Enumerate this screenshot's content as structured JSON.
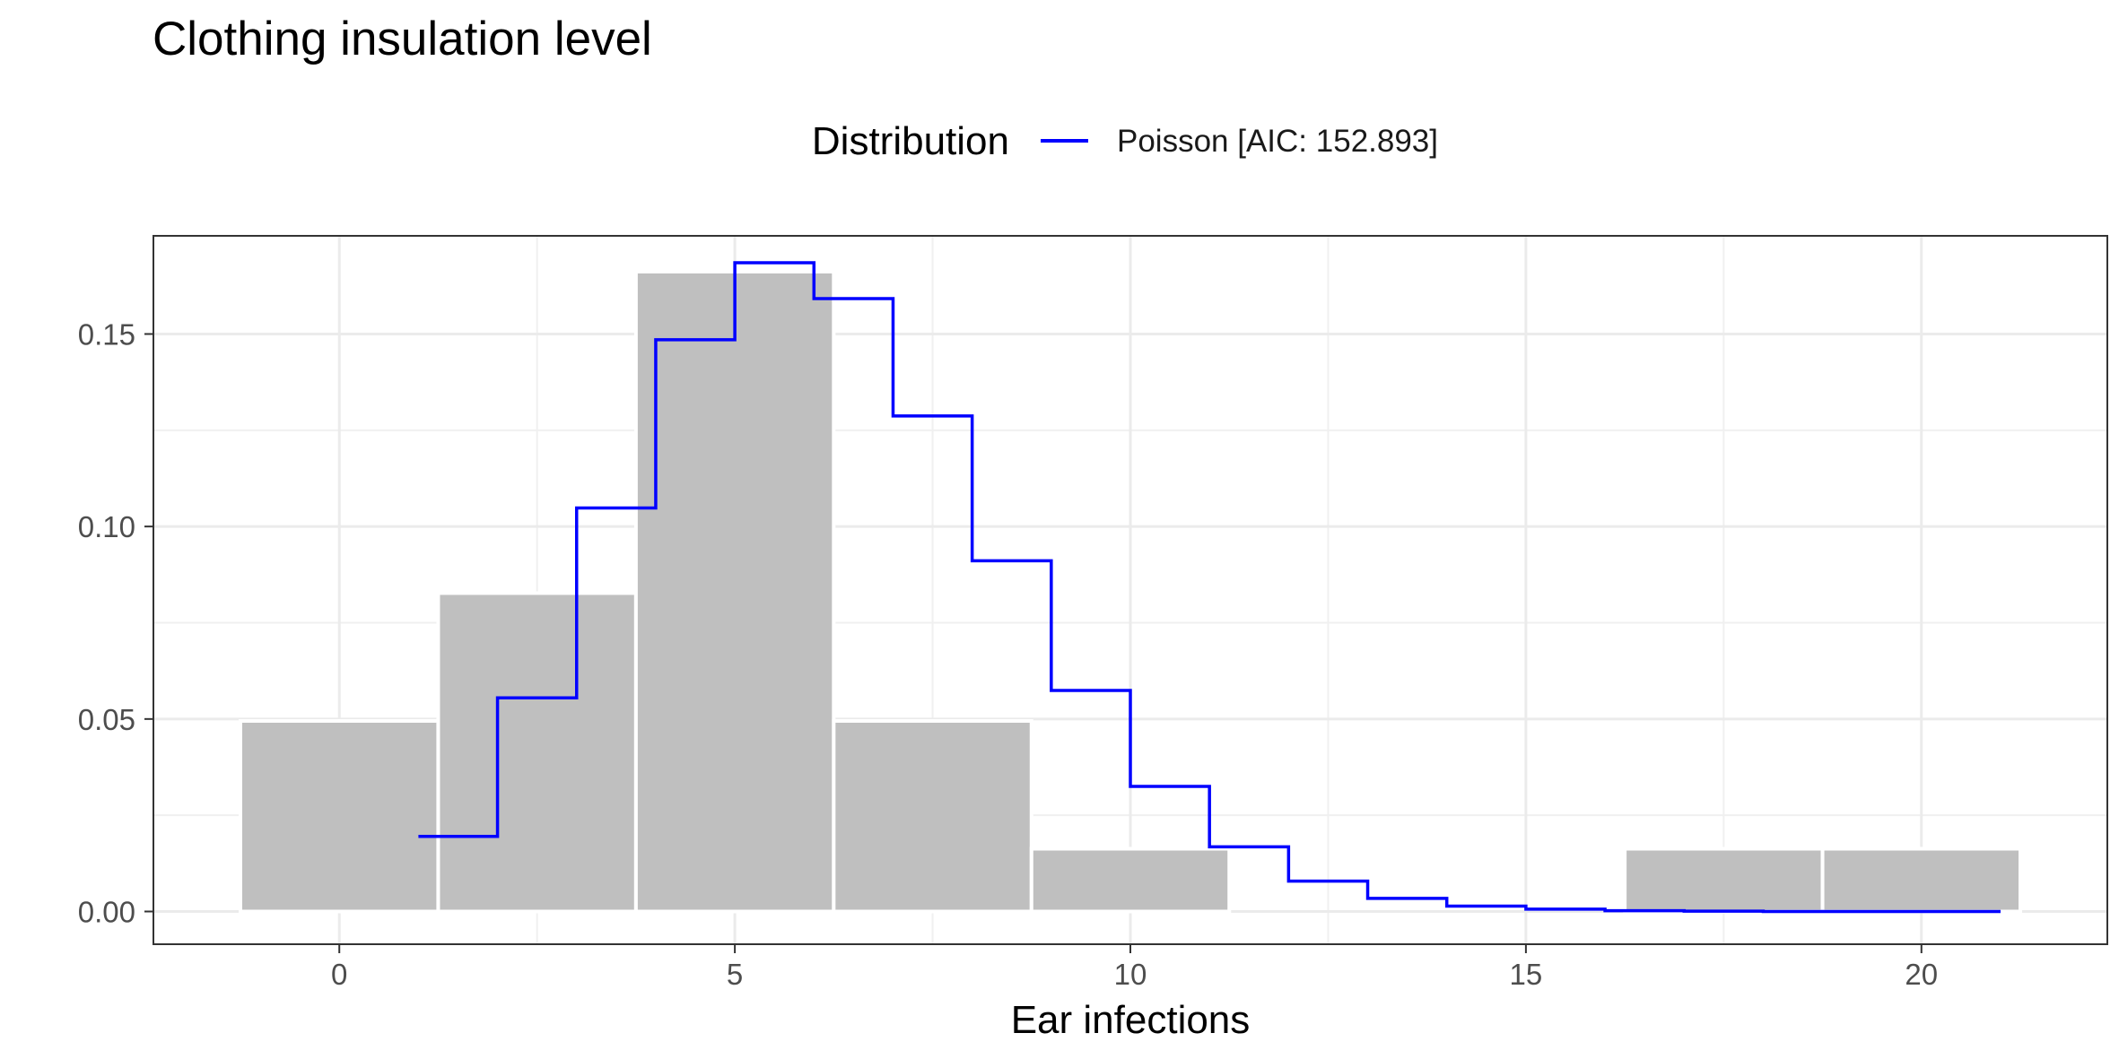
{
  "chart_data": {
    "type": "bar",
    "title": "Clothing insulation level",
    "xlabel": "Ear infections",
    "ylabel": "",
    "xlim": [
      -2.35,
      22.35
    ],
    "ylim": [
      -0.0085,
      0.1755
    ],
    "x_ticks": [
      0,
      5,
      10,
      15,
      20
    ],
    "x_tick_labels": [
      "0",
      "5",
      "10",
      "15",
      "20"
    ],
    "y_ticks": [
      0,
      0.05,
      0.1,
      0.15
    ],
    "y_tick_labels": [
      "0.00",
      "0.05",
      "0.10",
      "0.15"
    ],
    "grid": true,
    "legend": {
      "title": "Distribution",
      "placement": "top",
      "entries": [
        {
          "label": "Poisson [AIC: 152.893]",
          "color": "#0000ff"
        }
      ]
    },
    "histogram": {
      "color": "#bebebe",
      "bins": [
        {
          "x0": -1.25,
          "x1": 1.25,
          "value": 0.0495
        },
        {
          "x0": 1.25,
          "x1": 3.75,
          "value": 0.0827
        },
        {
          "x0": 3.75,
          "x1": 6.25,
          "value": 0.1662
        },
        {
          "x0": 6.25,
          "x1": 8.75,
          "value": 0.0495
        },
        {
          "x0": 8.75,
          "x1": 11.25,
          "value": 0.0163
        },
        {
          "x0": 11.25,
          "x1": 13.75,
          "value": 0
        },
        {
          "x0": 13.75,
          "x1": 16.25,
          "value": 0
        },
        {
          "x0": 16.25,
          "x1": 18.75,
          "value": 0.0163
        },
        {
          "x0": 18.75,
          "x1": 21.25,
          "value": 0.0163
        }
      ]
    },
    "series": [
      {
        "name": "Poisson [AIC: 152.893]",
        "color": "#0000ff",
        "style": "step",
        "x": [
          1,
          2,
          3,
          4,
          5,
          6,
          7,
          8,
          9,
          10,
          11,
          12,
          13,
          14,
          15,
          16,
          17,
          18,
          19,
          20,
          21
        ],
        "y": [
          0.0195,
          0.0555,
          0.1048,
          0.1485,
          0.1685,
          0.1592,
          0.1287,
          0.0911,
          0.0574,
          0.0325,
          0.0168,
          0.0079,
          0.0034,
          0.0014,
          0.0006,
          0.0002,
          0.0001,
          0.0,
          0.0,
          0.0,
          0.0
        ]
      }
    ]
  }
}
